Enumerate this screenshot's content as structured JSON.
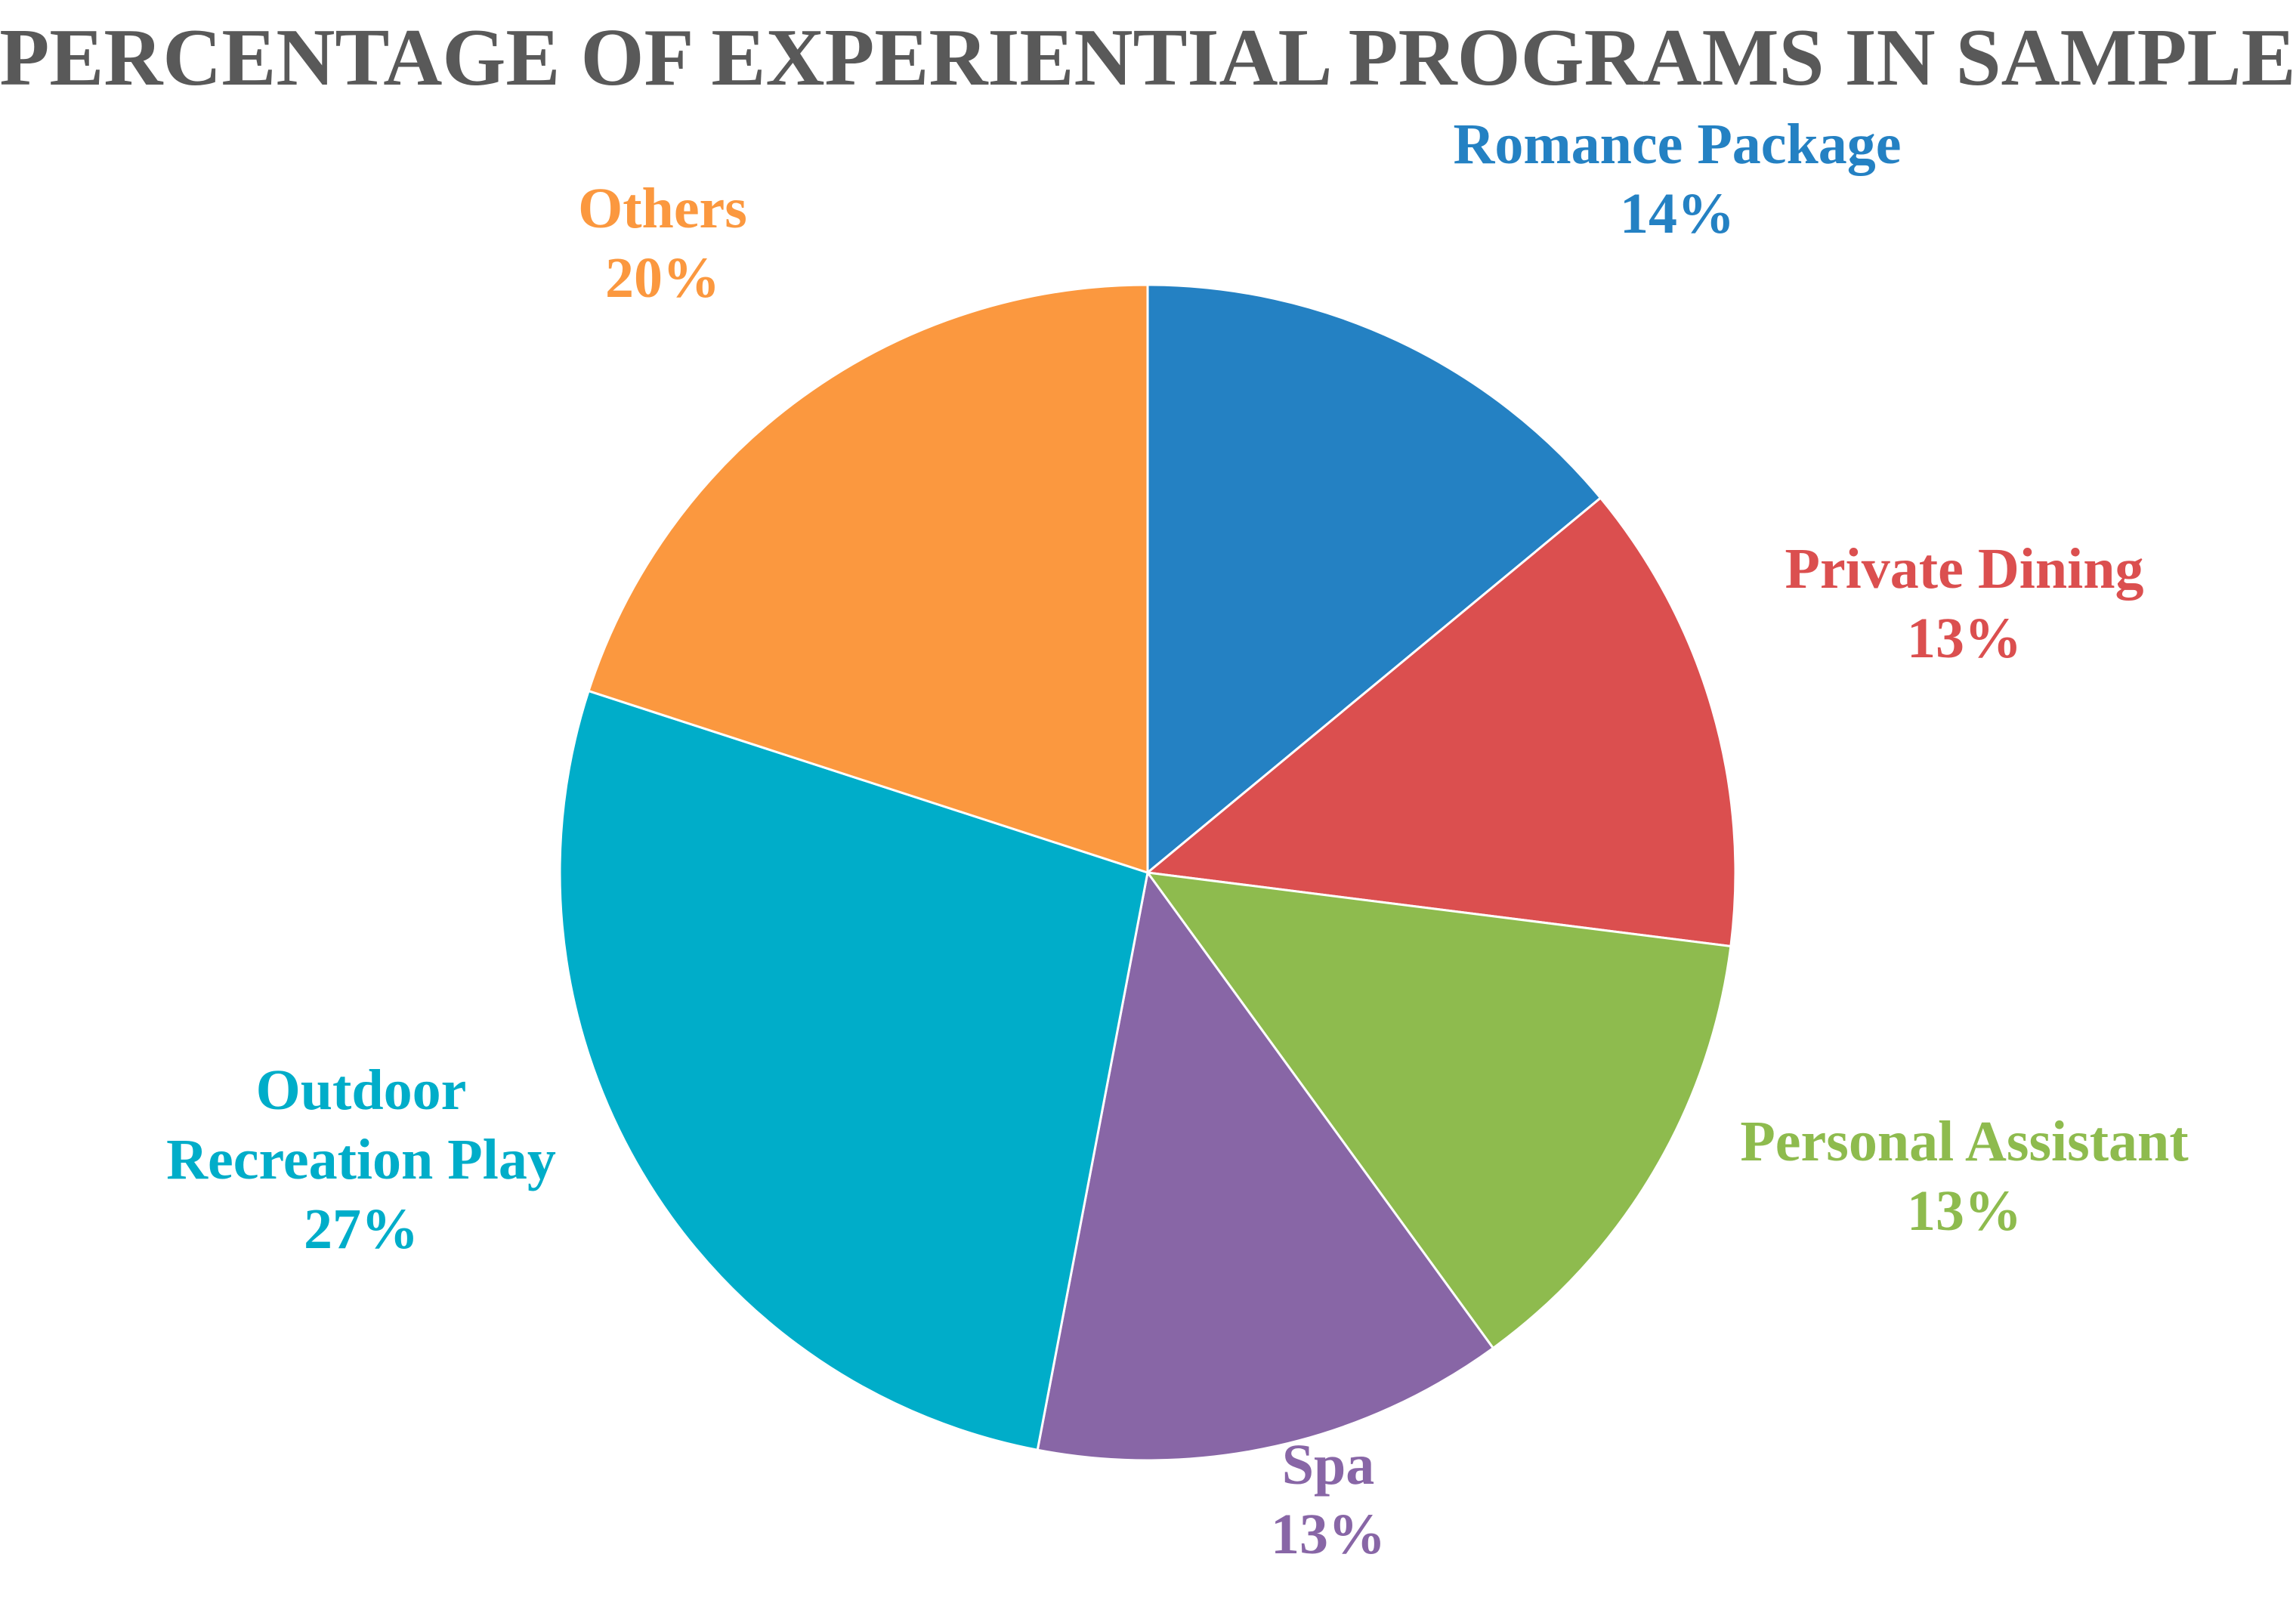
{
  "chart_data": {
    "type": "pie",
    "title": "PERCENTAGE OF EXPERIENTIAL PROGRAMS IN SAMPLE",
    "slices": [
      {
        "name": "Romance Package",
        "label_lines": [
          "Romance Package"
        ],
        "percent_label": "14%",
        "value": 14,
        "color": "#2481C3"
      },
      {
        "name": "Private Dining",
        "label_lines": [
          "Private Dining"
        ],
        "percent_label": "13%",
        "value": 13,
        "color": "#DB4F4F"
      },
      {
        "name": "Personal Assistant",
        "label_lines": [
          "Personal Assistant"
        ],
        "percent_label": "13%",
        "value": 13,
        "color": "#8EBB4E"
      },
      {
        "name": "Spa",
        "label_lines": [
          "Spa"
        ],
        "percent_label": "13%",
        "value": 13,
        "color": "#8866A6"
      },
      {
        "name": "Outdoor Recreation Play",
        "label_lines": [
          "Outdoor",
          "Recreation Play"
        ],
        "percent_label": "27%",
        "value": 27,
        "color": "#00ADC9"
      },
      {
        "name": "Others",
        "label_lines": [
          "Others"
        ],
        "percent_label": "20%",
        "value": 20,
        "color": "#FB983F"
      }
    ],
    "start_angle_deg": 0,
    "direction": "clockwise",
    "legend": "none",
    "data_labels": "outside"
  }
}
